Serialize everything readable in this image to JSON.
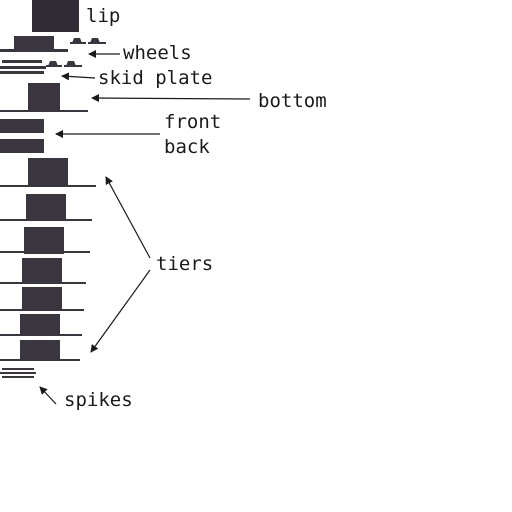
{
  "diagram": {
    "ink_color": "#1a1a1a",
    "block_color": "#3a353f",
    "labels": {
      "lip": "lip",
      "wheels": "wheels",
      "skid_plate": "skid plate",
      "bottom": "bottom",
      "front": "front",
      "back": "back",
      "tiers": "tiers",
      "spikes": "spikes"
    }
  }
}
